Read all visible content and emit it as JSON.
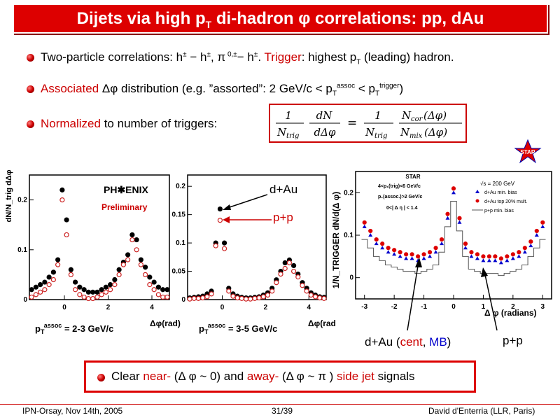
{
  "title": {
    "main": "Dijets via high p",
    "sub": "T",
    "rest": " di-hadron φ correlations: pp, dAu"
  },
  "bullets": {
    "b1": {
      "a": "Two-particle correlations: h",
      "a_sup": "±",
      "b": " − h",
      "b_sup": "±",
      "c": ", π",
      "c_sup": " 0,±",
      "d": "− h",
      "d_sup": "±",
      "e": ".  ",
      "trigger": "Trigger",
      "f": ": highest p",
      "f_sub": "T",
      "g": " (leading) hadron."
    },
    "b2": {
      "assoc": "Associated",
      "a": " Δφ distribution (e.g. ”assorted”: 2 GeV/c < p",
      "a_sub": "T",
      "a_sup": "assoc",
      "b": " < p",
      "b_sub": "T",
      "b_sup": "trigger",
      "c": ")"
    },
    "b3": {
      "norm": "Normalized",
      "a": " to number of triggers:"
    }
  },
  "formula": {
    "one": "1",
    "ntrig": "N",
    "ntrig_sub": "trig",
    "dn": "dN",
    "ddphi": "dΔφ",
    "eq": "=",
    "ncor": "N",
    "ncor_sub": "cor",
    "ncor_arg": "(Δφ)",
    "nmix": "N",
    "nmix_sub": "mix",
    "nmix_arg": "(Δφ)"
  },
  "colors": {
    "dAu": "#000000",
    "pp": "#cc2222",
    "star_cent": "#dd0000",
    "star_mb": "#0000cc"
  },
  "phenix": {
    "logo": "PH✱ENIX",
    "preliminary": "Preliminary",
    "ylabel": "dN/N_trig dΔφ",
    "xlabel": "Δφ(rad)",
    "panel1_label": "p",
    "panel1_sub": "T",
    "panel1_sup": "assoc",
    "panel1_text": " = 2-3 GeV/c",
    "panel2_label": "p",
    "panel2_sub": "T",
    "panel2_sup": "assoc",
    "panel2_text": " = 3-5 GeV/c",
    "dAu_label": "d+Au",
    "pp_label": "p+p"
  },
  "star": {
    "header": "STAR",
    "cond1": "4<p₁(trig)<6 GeV/c",
    "cond2": "p₁(assoc.)>2 GeV/c",
    "cond3": "0<| Δ η | < 1.4",
    "sqrt": "√s = 200 GeV",
    "leg1": "d+Au min. bias",
    "leg2": "d+Au top 20% mult.",
    "leg3": "p+p min. bias",
    "ylabel": "1/N_TRIGGER dN/d(Δ φ)",
    "xlabel": "Δ φ (radians)",
    "logo": "STAR",
    "dAu_a": "d+Au (",
    "cent": "cent",
    "comma": ", ",
    "mb": "MB",
    "close": ")",
    "pp": "p+p"
  },
  "chart_data": [
    {
      "type": "scatter",
      "title": "",
      "xlabel": "Δφ(rad)",
      "ylabel": "dN/N_trig dΔφ",
      "xlim": [
        -1.6,
        4.8
      ],
      "ylim": [
        0,
        0.25
      ],
      "x_ticks": [
        0,
        2,
        4
      ],
      "y_ticks": [
        0,
        0.1,
        0.2
      ],
      "series": [
        {
          "name": "d+Au",
          "x": [
            -1.5,
            -1.3,
            -1.1,
            -0.9,
            -0.7,
            -0.5,
            -0.3,
            -0.1,
            0.1,
            0.3,
            0.5,
            0.7,
            0.9,
            1.1,
            1.3,
            1.5,
            1.7,
            1.9,
            2.1,
            2.3,
            2.5,
            2.7,
            2.9,
            3.1,
            3.3,
            3.5,
            3.7,
            3.9,
            4.1,
            4.3,
            4.5,
            4.7
          ],
          "y": [
            0.02,
            0.025,
            0.03,
            0.035,
            0.045,
            0.055,
            0.08,
            0.22,
            0.16,
            0.06,
            0.035,
            0.025,
            0.02,
            0.015,
            0.015,
            0.015,
            0.02,
            0.025,
            0.03,
            0.04,
            0.06,
            0.075,
            0.09,
            0.13,
            0.12,
            0.08,
            0.065,
            0.045,
            0.035,
            0.025,
            0.02,
            0.02
          ]
        },
        {
          "name": "p+p",
          "x": [
            -1.5,
            -1.3,
            -1.1,
            -0.9,
            -0.7,
            -0.5,
            -0.3,
            -0.1,
            0.1,
            0.3,
            0.5,
            0.7,
            0.9,
            1.1,
            1.3,
            1.5,
            1.7,
            1.9,
            2.1,
            2.3,
            2.5,
            2.7,
            2.9,
            3.1,
            3.3,
            3.5,
            3.7,
            3.9,
            4.1,
            4.3,
            4.5,
            4.7
          ],
          "y": [
            0.005,
            0.01,
            0.015,
            0.02,
            0.03,
            0.04,
            0.07,
            0.2,
            0.13,
            0.05,
            0.02,
            0.01,
            0.005,
            0.002,
            0.002,
            0.005,
            0.01,
            0.015,
            0.02,
            0.03,
            0.05,
            0.07,
            0.08,
            0.12,
            0.1,
            0.07,
            0.05,
            0.03,
            0.02,
            0.01,
            0.005,
            0.005
          ]
        }
      ]
    },
    {
      "type": "scatter",
      "title": "",
      "xlabel": "Δφ(rad)",
      "ylabel": "",
      "xlim": [
        -1.6,
        4.8
      ],
      "ylim": [
        0,
        0.22
      ],
      "x_ticks": [
        0,
        2,
        4
      ],
      "y_ticks": [
        0,
        0.05,
        0.1,
        0.15,
        0.2
      ],
      "series": [
        {
          "name": "d+Au",
          "x": [
            -1.5,
            -1.3,
            -1.1,
            -0.9,
            -0.7,
            -0.5,
            -0.3,
            -0.1,
            0.1,
            0.3,
            0.5,
            0.7,
            0.9,
            1.1,
            1.3,
            1.5,
            1.7,
            1.9,
            2.1,
            2.3,
            2.5,
            2.7,
            2.9,
            3.1,
            3.3,
            3.5,
            3.7,
            3.9,
            4.1,
            4.3,
            4.5,
            4.7
          ],
          "y": [
            0.003,
            0.004,
            0.005,
            0.006,
            0.01,
            0.015,
            0.1,
            0.16,
            0.1,
            0.02,
            0.01,
            0.006,
            0.004,
            0.003,
            0.003,
            0.004,
            0.005,
            0.008,
            0.012,
            0.02,
            0.035,
            0.05,
            0.065,
            0.07,
            0.06,
            0.045,
            0.03,
            0.02,
            0.012,
            0.008,
            0.005,
            0.004
          ]
        },
        {
          "name": "p+p",
          "x": [
            -1.5,
            -1.3,
            -1.1,
            -0.9,
            -0.7,
            -0.5,
            -0.3,
            -0.1,
            0.1,
            0.3,
            0.5,
            0.7,
            0.9,
            1.1,
            1.3,
            1.5,
            1.7,
            1.9,
            2.1,
            2.3,
            2.5,
            2.7,
            2.9,
            3.1,
            3.3,
            3.5,
            3.7,
            3.9,
            4.1,
            4.3,
            4.5,
            4.7
          ],
          "y": [
            0.001,
            0.002,
            0.002,
            0.003,
            0.005,
            0.01,
            0.095,
            0.14,
            0.09,
            0.015,
            0.006,
            0.003,
            0.002,
            0.001,
            0.001,
            0.002,
            0.003,
            0.005,
            0.008,
            0.015,
            0.03,
            0.045,
            0.055,
            0.065,
            0.05,
            0.04,
            0.025,
            0.015,
            0.008,
            0.005,
            0.003,
            0.002
          ]
        }
      ]
    },
    {
      "type": "scatter",
      "title": "STAR",
      "xlabel": "Δ φ (radians)",
      "ylabel": "1/N_TRIGGER dN/d(Δ φ)",
      "xlim": [
        -3.3,
        3.3
      ],
      "ylim": [
        -0.05,
        0.25
      ],
      "x_ticks": [
        -3,
        -2,
        -1,
        0,
        1,
        2,
        3
      ],
      "y_ticks": [
        0,
        0.1,
        0.2
      ],
      "series": [
        {
          "name": "d+Au min. bias",
          "x": [
            -3.0,
            -2.8,
            -2.6,
            -2.4,
            -2.2,
            -2.0,
            -1.8,
            -1.6,
            -1.4,
            -1.2,
            -1.0,
            -0.8,
            -0.6,
            -0.4,
            -0.2,
            0.0,
            0.2,
            0.4,
            0.6,
            0.8,
            1.0,
            1.2,
            1.4,
            1.6,
            1.8,
            2.0,
            2.2,
            2.4,
            2.6,
            2.8,
            3.0
          ],
          "y": [
            0.12,
            0.1,
            0.08,
            0.07,
            0.06,
            0.055,
            0.05,
            0.045,
            0.045,
            0.04,
            0.045,
            0.05,
            0.06,
            0.08,
            0.14,
            0.2,
            0.13,
            0.07,
            0.05,
            0.045,
            0.04,
            0.04,
            0.04,
            0.035,
            0.04,
            0.045,
            0.05,
            0.06,
            0.075,
            0.1,
            0.12
          ]
        },
        {
          "name": "d+Au top 20% mult.",
          "x": [
            -3.0,
            -2.8,
            -2.6,
            -2.4,
            -2.2,
            -2.0,
            -1.8,
            -1.6,
            -1.4,
            -1.2,
            -1.0,
            -0.8,
            -0.6,
            -0.4,
            -0.2,
            0.0,
            0.2,
            0.4,
            0.6,
            0.8,
            1.0,
            1.2,
            1.4,
            1.6,
            1.8,
            2.0,
            2.2,
            2.4,
            2.6,
            2.8,
            3.0
          ],
          "y": [
            0.13,
            0.11,
            0.09,
            0.08,
            0.07,
            0.065,
            0.06,
            0.055,
            0.055,
            0.05,
            0.055,
            0.06,
            0.07,
            0.09,
            0.15,
            0.21,
            0.14,
            0.08,
            0.06,
            0.055,
            0.05,
            0.05,
            0.05,
            0.045,
            0.05,
            0.055,
            0.06,
            0.07,
            0.085,
            0.11,
            0.13
          ]
        },
        {
          "name": "p+p min. bias",
          "x": [
            -3.0,
            -2.8,
            -2.6,
            -2.4,
            -2.2,
            -2.0,
            -1.8,
            -1.6,
            -1.4,
            -1.2,
            -1.0,
            -0.8,
            -0.6,
            -0.4,
            -0.2,
            0.0,
            0.2,
            0.4,
            0.6,
            0.8,
            1.0,
            1.2,
            1.4,
            1.6,
            1.8,
            2.0,
            2.2,
            2.4,
            2.6,
            2.8,
            3.0
          ],
          "y": [
            0.09,
            0.07,
            0.05,
            0.04,
            0.03,
            0.025,
            0.02,
            0.015,
            0.015,
            0.01,
            0.015,
            0.02,
            0.03,
            0.06,
            0.12,
            0.18,
            0.11,
            0.05,
            0.02,
            0.015,
            0.01,
            0.01,
            0.01,
            0.005,
            0.01,
            0.015,
            0.02,
            0.03,
            0.05,
            0.07,
            0.09
          ]
        }
      ]
    }
  ],
  "conclusion": {
    "a": "Clear ",
    "near": "near-",
    "b": " (Δ φ  ~ 0) and ",
    "away": "away-",
    "c": " (Δ φ  ~ π ) ",
    "side": "side jet",
    "d": " signals"
  },
  "footer": {
    "left": "IPN-Orsay, Nov 14th, 2005",
    "center": "31/39",
    "right": "David d'Enterria (LLR, Paris)"
  }
}
